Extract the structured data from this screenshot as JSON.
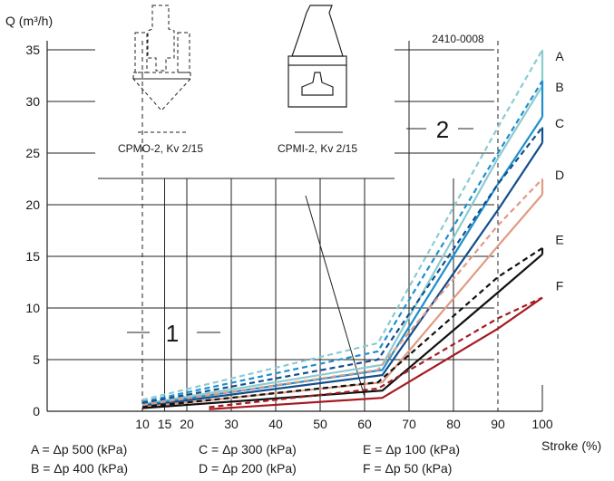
{
  "chart_data": {
    "type": "line",
    "title": "",
    "ylabel": "Q (m³/h)",
    "xlabel": "Stroke (%)",
    "figure_code": "2410-0008",
    "ylim": [
      0,
      35
    ],
    "xlim": [
      0,
      100
    ],
    "x_ticks": [
      10,
      15,
      20,
      30,
      40,
      50,
      60,
      70,
      80,
      90,
      100
    ],
    "y_ticks": [
      0,
      5,
      10,
      15,
      20,
      25,
      30,
      35
    ],
    "region_labels": [
      "1",
      "2"
    ],
    "diagram_labels": [
      "CPMO-2, Kv 2/15",
      "CPMI-2, Kv 2/15"
    ],
    "legend": [
      "A = Δp 500 (kPa)",
      "B = Δp 400 (kPa)",
      "C = Δp 300 (kPa)",
      "D = Δp 200 (kPa)",
      "E = Δp 100 (kPa)",
      "F = Δp 50 (kPa)"
    ],
    "series": [
      {
        "name": "A",
        "color": "#8ccbd0",
        "solid": {
          "x": [
            10,
            64,
            90,
            100
          ],
          "y": [
            0.7,
            4.5,
            24.5,
            31.5
          ]
        },
        "dashed": {
          "x": [
            10,
            63,
            90,
            100
          ],
          "y": [
            1.1,
            6.6,
            27.5,
            35.0
          ]
        }
      },
      {
        "name": "B",
        "color": "#1e8fcd",
        "solid": {
          "x": [
            10,
            64,
            90,
            100
          ],
          "y": [
            0.6,
            4.0,
            22.0,
            28.5
          ]
        },
        "dashed": {
          "x": [
            10,
            63,
            90,
            100
          ],
          "y": [
            0.9,
            5.8,
            25.0,
            32.0
          ]
        }
      },
      {
        "name": "C",
        "color": "#134e8c",
        "solid": {
          "x": [
            10,
            64,
            90,
            100
          ],
          "y": [
            0.5,
            3.5,
            19.5,
            26.0
          ]
        },
        "dashed": {
          "x": [
            10,
            63,
            90,
            100
          ],
          "y": [
            0.8,
            5.0,
            22.0,
            27.5
          ]
        }
      },
      {
        "name": "D",
        "color": "#e19a82",
        "solid": {
          "x": [
            10,
            64,
            90,
            100
          ],
          "y": [
            0.4,
            2.8,
            16.0,
            21.0
          ]
        },
        "dashed": {
          "x": [
            10,
            63,
            90,
            100
          ],
          "y": [
            0.6,
            4.0,
            18.0,
            22.5
          ]
        }
      },
      {
        "name": "E",
        "color": "#111111",
        "solid": {
          "x": [
            10,
            64,
            90,
            100
          ],
          "y": [
            0.3,
            2.0,
            11.5,
            15.2
          ]
        },
        "dashed": {
          "x": [
            10,
            63,
            90,
            100
          ],
          "y": [
            0.4,
            2.8,
            13.0,
            15.8
          ]
        }
      },
      {
        "name": "F",
        "color": "#a51b22",
        "solid": {
          "x": [
            25,
            64,
            90,
            100
          ],
          "y": [
            0.2,
            1.3,
            8.0,
            11.0
          ]
        },
        "dashed": {
          "x": [
            25,
            63,
            90,
            100
          ],
          "y": [
            0.4,
            2.2,
            9.0,
            11.0
          ]
        }
      }
    ]
  }
}
